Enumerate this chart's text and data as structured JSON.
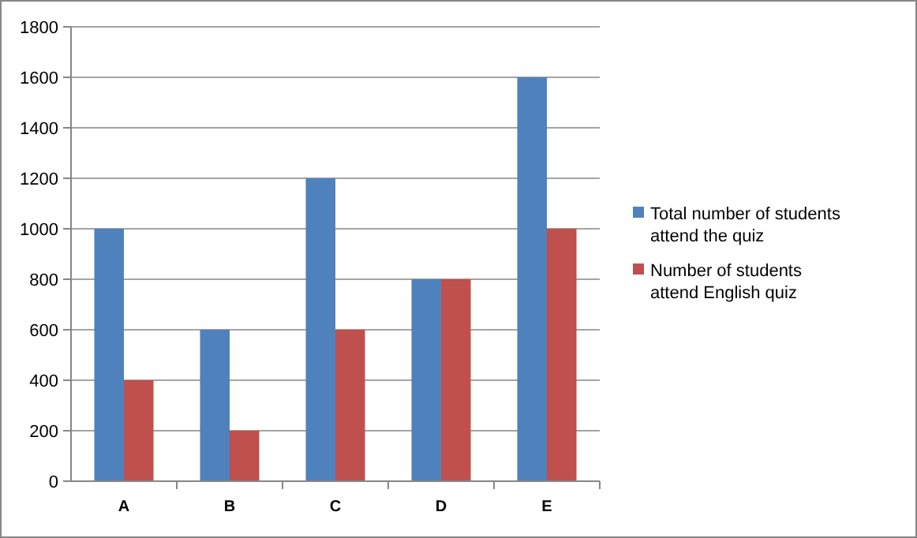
{
  "chart_data": {
    "type": "bar",
    "categories": [
      "A",
      "B",
      "C",
      "D",
      "E"
    ],
    "series": [
      {
        "name": "Total number of students attend the quiz",
        "color": "#4f81bd",
        "values": [
          1000,
          600,
          1200,
          800,
          1600
        ]
      },
      {
        "name": "Number of students attend English quiz",
        "color": "#c0504d",
        "values": [
          400,
          200,
          600,
          800,
          1000
        ]
      }
    ],
    "ylim": [
      0,
      1800
    ],
    "yticks": [
      0,
      200,
      400,
      600,
      800,
      1000,
      1200,
      1400,
      1600,
      1800
    ],
    "grid": "y",
    "legend": "right"
  }
}
